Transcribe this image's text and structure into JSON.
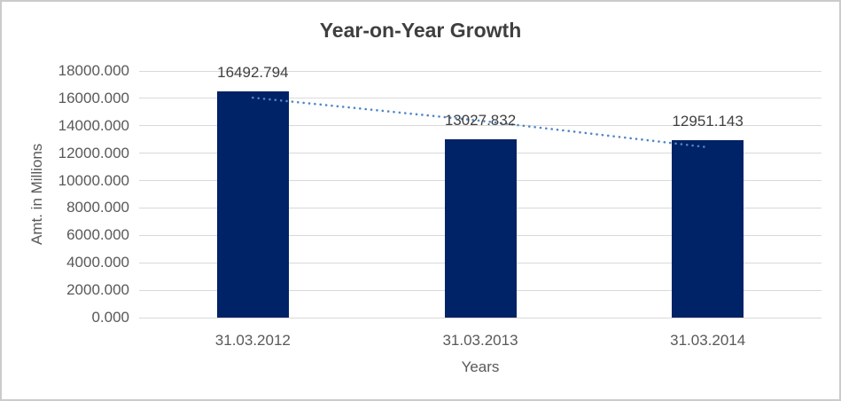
{
  "chart_data": {
    "type": "bar",
    "title": "Year-on-Year Growth",
    "xlabel": "Years",
    "ylabel": "Amt. in Millions",
    "categories": [
      "31.03.2012",
      "31.03.2013",
      "31.03.2014"
    ],
    "values": [
      16492.794,
      13027.832,
      12951.143
    ],
    "data_labels": [
      "16492.794",
      "13027.832",
      "12951.143"
    ],
    "ylim": [
      0,
      18000
    ],
    "ytick_step": 2000,
    "yticks": [
      "18000.000",
      "16000.000",
      "14000.000",
      "12000.000",
      "10000.000",
      "8000.000",
      "6000.000",
      "4000.000",
      "2000.000",
      "0.000"
    ],
    "grid": true,
    "legend_position": "none",
    "trendline": {
      "type": "dotted",
      "values": [
        16050,
        14370,
        12430
      ]
    },
    "colors": {
      "bar": "#002266",
      "trendline": "#4f87c7",
      "title_text": "#3f3f3f",
      "axis_text": "#595959",
      "data_label_text": "#404040",
      "gridline": "#d9d9d9",
      "border": "#cbcbcb",
      "background": "#ffffff"
    }
  }
}
